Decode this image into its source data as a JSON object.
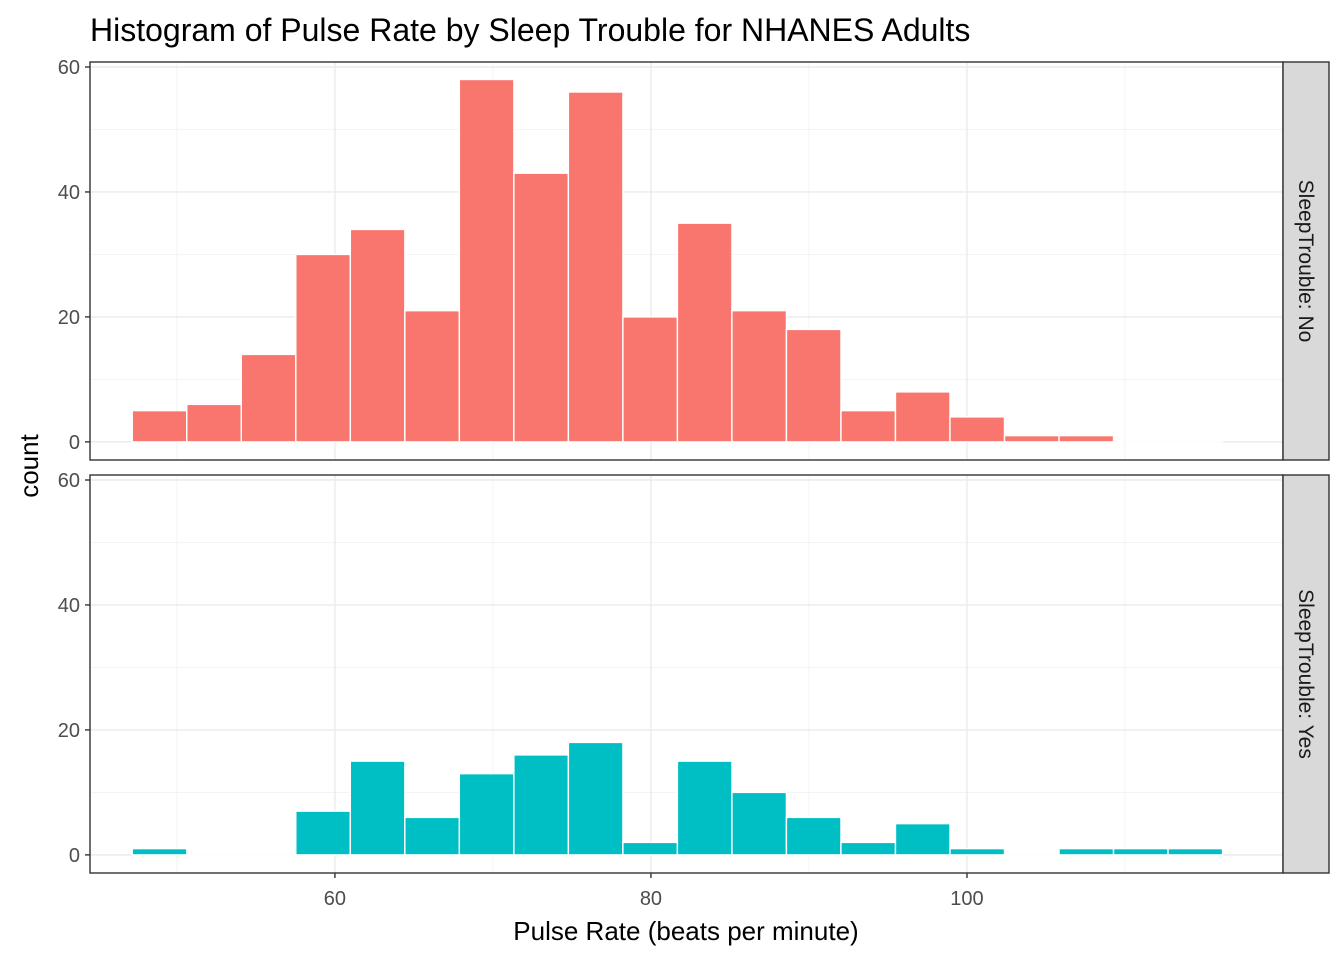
{
  "chart_data": {
    "type": "bar",
    "title": "Histogram of Pulse Rate by Sleep Trouble for NHANES Adults",
    "xlabel": "Pulse Rate (beats per minute)",
    "ylabel": "count",
    "x_ticks": [
      60,
      80,
      100
    ],
    "y_ticks": [
      0,
      20,
      40,
      60
    ],
    "xlim": [
      44.5,
      120
    ],
    "ylim": [
      -2.9,
      60.8
    ],
    "bin_width": 3.45,
    "bin_centers": [
      48.9,
      52.35,
      55.8,
      59.25,
      62.7,
      66.15,
      69.6,
      73.05,
      76.5,
      79.95,
      83.4,
      86.85,
      90.3,
      93.75,
      97.2,
      100.65,
      104.1,
      107.55,
      111.0,
      114.45
    ],
    "grid": true,
    "facets": [
      {
        "label": "SleepTrouble: No",
        "color": "#F8766D",
        "values": [
          5,
          6,
          14,
          30,
          34,
          21,
          58,
          43,
          56,
          20,
          35,
          21,
          18,
          5,
          8,
          4,
          1,
          1,
          0,
          0
        ]
      },
      {
        "label": "SleepTrouble: Yes",
        "color": "#00BFC4",
        "values": [
          1,
          0,
          0,
          7,
          15,
          6,
          13,
          16,
          18,
          2,
          15,
          10,
          6,
          2,
          5,
          1,
          0,
          1,
          1,
          1
        ]
      }
    ]
  }
}
